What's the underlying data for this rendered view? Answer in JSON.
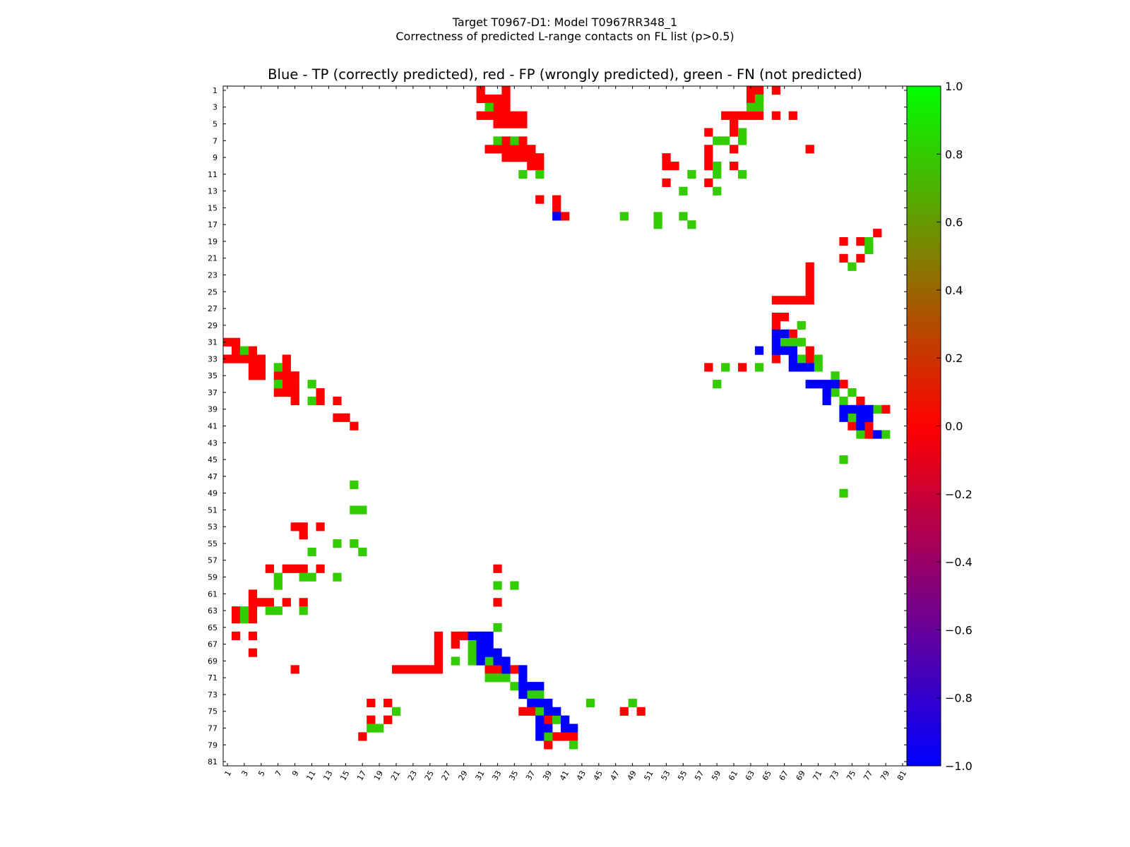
{
  "figure": {
    "suptitle_line1": "Target T0967-D1: Model T0967RR348_1",
    "suptitle_line2": "Correctness of predicted L-range contacts on FL list (p>0.5)",
    "plot_title": "Blue - TP (correctly predicted), red - FP (wrongly predicted), green - FN (not predicted)"
  },
  "chart_data": {
    "type": "heatmap",
    "title": "Blue - TP (correctly predicted), red - FP (wrongly predicted), green - FN (not predicted)",
    "xlim": [
      1,
      81
    ],
    "ylim": [
      81,
      1
    ],
    "x_ticks": [
      1,
      3,
      5,
      7,
      9,
      11,
      13,
      15,
      17,
      19,
      21,
      23,
      25,
      27,
      29,
      31,
      33,
      35,
      37,
      39,
      41,
      43,
      45,
      47,
      49,
      51,
      53,
      55,
      57,
      59,
      61,
      63,
      65,
      67,
      69,
      71,
      73,
      75,
      77,
      79,
      81
    ],
    "y_ticks": [
      1,
      3,
      5,
      7,
      9,
      11,
      13,
      15,
      17,
      19,
      21,
      23,
      25,
      27,
      29,
      31,
      33,
      35,
      37,
      39,
      41,
      43,
      45,
      47,
      49,
      51,
      53,
      55,
      57,
      59,
      61,
      63,
      65,
      67,
      69,
      71,
      73,
      75,
      77,
      79,
      81
    ],
    "colorbar": {
      "range": [
        -1.0,
        1.0
      ],
      "ticks": [
        "1.0",
        "0.8",
        "0.6",
        "0.4",
        "0.2",
        "0.0",
        "−0.2",
        "−0.4",
        "−0.6",
        "−0.8",
        "−1.0"
      ],
      "stops": [
        "#0000ff",
        "#ff0000",
        "#00ff00"
      ]
    },
    "categories": {
      "TP": {
        "value": -1,
        "color": "#0000ff"
      },
      "FP": {
        "value": 0,
        "color": "#ff0000"
      },
      "FN": {
        "value": 0.8,
        "color": "#33cc00"
      }
    },
    "cells_red": "1 31,1 34,2 31,2 32,2 33,2 34,3 33,3 34,4 31,4 32,4 33,4 34,4 35,4 36,5 33,5 34,5 35,5 36,7 34,7 36,8 32,8 33,8 34,8 35,8 36,8 37,9 34,9 35,9 36,9 37,9 38,10 37,10 38,14 38,14 40,15 40,16 41,1 63,1 64,1 66,2 63,2 64,4 60,4 61,4 62,4 63,4 64,4 66,4 68,5 61,6 58,6 61,8 58,8 61,8 70,9 53,9 58,10 53,10 54,10 58,10 61,12 53,12 58,18 78,19 74,19 76,21 74,21 76,22 70,23 70,24 70,25 70,26 66,26 67,26 68,26 69,26 70,28 66,28 67,29 66,30 68,32 70,33 66,33 70,34 58,34 62,36 74,38 76,39 79,40 77,41 75,41 77,42 77,31 1,31 2,32 2,32 4,33 1,33 2,33 3,33 4,33 5,33 8,34 4,34 5,34 8,35 4,35 5,35 7,35 8,35 9,36 8,36 9,37 7,37 8,37 9,37 12,38 9,38 12,38 14,40 14,40 15,41 16,53 9,53 10,53 12,54 10,58 6,58 8,58 9,58 10,58 12,58 33,61 4,62 4,62 5,62 6,62 8,62 10,62 33,63 2,63 4,64 2,64 4,66 2,66 4,66 26,66 28,66 29,67 26,67 28,68 4,68 26,68 30,69 26,70 9,70 21,70 22,70 23,70 24,70 25,70 26,70 32,70 33,70 35,74 18,74 20,75 36,75 37,75 48,75 50,76 18,76 20,76 39,77 41,78 17,78 40,78 41,78 42,79 39",
    "cells_green": "3 32,7 33,7 35,11 36,11 38,13 55,13 59,16 48,16 52,16 55,17 52,17 56,2 64,3 63,3 64,6 62,7 59,7 60,7 62,10 59,11 56,11 59,11 62,19 77,20 77,22 75,29 69,31 67,31 68,31 69,32 67,32 68,33 69,33 71,34 60,34 64,34 71,35 73,36 59,37 73,37 75,38 74,39 78,40 75,42 76,42 79,45 74,49 74,32 3,34 7,36 7,36 11,38 11,48 16,51 16,51 17,55 14,55 16,56 11,56 17,59 7,59 10,59 11,59 14,60 7,60 33,60 35,63 3,63 6,63 7,63 10,64 3,65 33,67 30,68 30,69 28,69 30,69 32,71 32,71 33,71 34,72 35,73 37,73 38,74 44,74 49,75 21,75 38,76 40,77 18,77 19,77 42,78 39,79 42",
    "cells_blue": "16 40,30 66,30 67,31 66,32 64,32 66,32 67,32 68,33 68,34 68,34 69,34 70,36 70,36 71,36 72,36 73,37 72,38 72,39 74,39 75,39 76,39 77,40 74,40 76,40 77,41 76,42 78,66 30,66 31,66 32,67 31,67 32,68 31,68 32,68 33,69 31,69 33,69 34,70 34,70 36,71 36,72 36,72 37,72 38,73 36,74 37,74 38,74 39,75 39,75 40,76 38,76 41,77 38,77 39,77 41,77 42,78 38"
  }
}
